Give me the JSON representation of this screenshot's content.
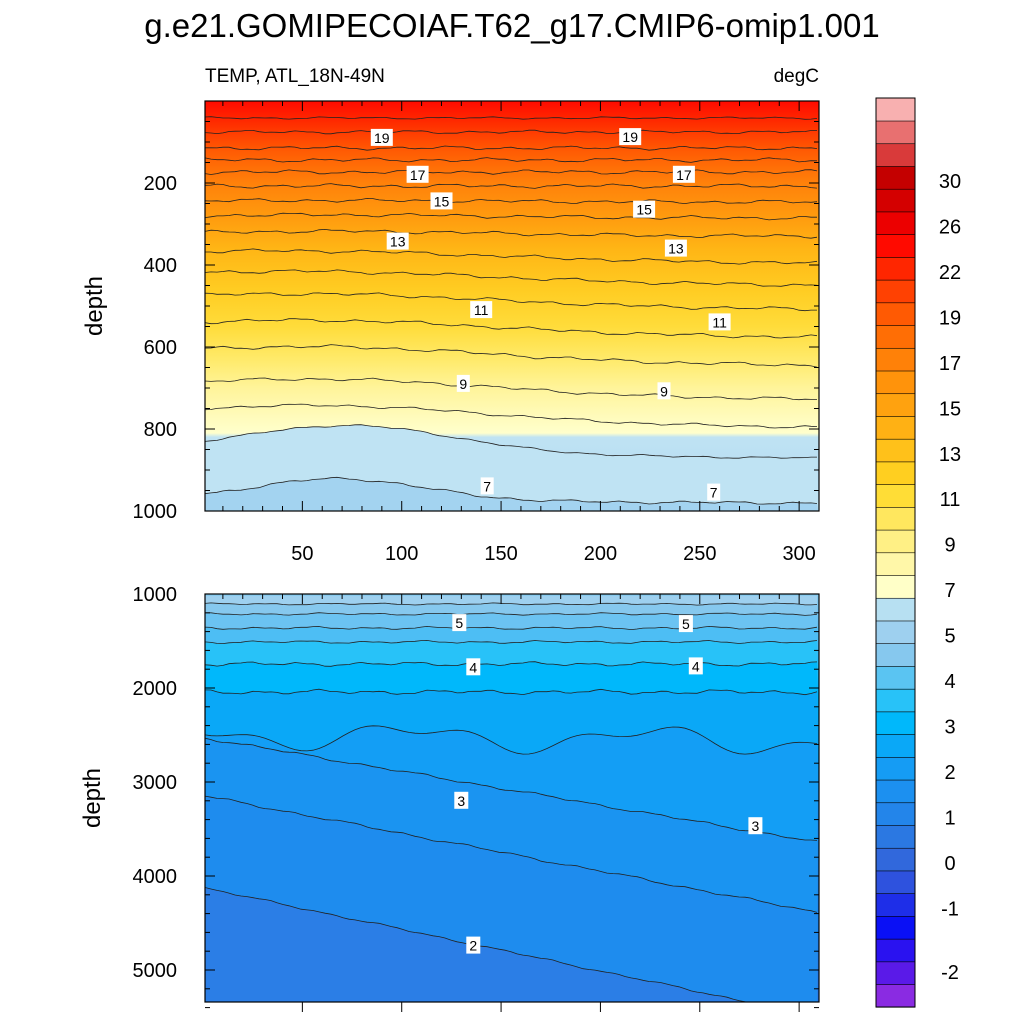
{
  "figure": {
    "title": "g.e21.GOMIPECOIAF.T62_g17.CMIP6-omip1.001",
    "left_subtitle": "TEMP, ATL_18N-49N",
    "right_subtitle": "degC"
  },
  "chart_data": [
    {
      "type": "heatmap",
      "panel": "upper",
      "ylabel": "depth",
      "xlim": [
        1,
        310
      ],
      "ylim": [
        0,
        1000
      ],
      "y_inverted": true,
      "x_ticks": [
        50,
        100,
        150,
        200,
        250,
        300
      ],
      "y_ticks": [
        200,
        400,
        600,
        800,
        1000
      ],
      "contour_labels": [
        {
          "value": "19",
          "x": 90,
          "y": 90
        },
        {
          "value": "19",
          "x": 215,
          "y": 88
        },
        {
          "value": "17",
          "x": 108,
          "y": 180
        },
        {
          "value": "17",
          "x": 242,
          "y": 180
        },
        {
          "value": "15",
          "x": 120,
          "y": 245
        },
        {
          "value": "15",
          "x": 222,
          "y": 265
        },
        {
          "value": "13",
          "x": 98,
          "y": 343
        },
        {
          "value": "13",
          "x": 238,
          "y": 360
        },
        {
          "value": "11",
          "x": 140,
          "y": 510
        },
        {
          "value": "11",
          "x": 260,
          "y": 540
        },
        {
          "value": "9",
          "x": 131,
          "y": 690
        },
        {
          "value": "9",
          "x": 232,
          "y": 708
        },
        {
          "value": "7",
          "x": 143,
          "y": 940
        },
        {
          "value": "7",
          "x": 257,
          "y": 955
        }
      ]
    },
    {
      "type": "heatmap",
      "panel": "lower",
      "ylabel": "depth",
      "xlim": [
        1,
        310
      ],
      "ylim": [
        1000,
        5400
      ],
      "y_inverted": true,
      "y_ticks": [
        1000,
        2000,
        3000,
        4000,
        5000
      ],
      "contour_labels": [
        {
          "value": "5",
          "x": 129,
          "y": 1310
        },
        {
          "value": "5",
          "x": 243,
          "y": 1320
        },
        {
          "value": "4",
          "x": 136,
          "y": 1780
        },
        {
          "value": "4",
          "x": 248,
          "y": 1770
        },
        {
          "value": "3",
          "x": 130,
          "y": 3200
        },
        {
          "value": "3",
          "x": 278,
          "y": 3470
        },
        {
          "value": "2",
          "x": 136,
          "y": 4740
        }
      ]
    }
  ],
  "colorbar": {
    "labels": [
      "-2",
      "-1",
      "0",
      "1",
      "2",
      "3",
      "4",
      "5",
      "7",
      "9",
      "11",
      "13",
      "15",
      "17",
      "19",
      "22",
      "26",
      "30"
    ],
    "colors": [
      "#8a2be2",
      "#5a1ae8",
      "#2a12f0",
      "#0a10f5",
      "#1e2ee8",
      "#2e52de",
      "#3168dc",
      "#2b78e2",
      "#2385ea",
      "#1c90f0",
      "#159cf4",
      "#0aa8f7",
      "#00b8fb",
      "#28c2f8",
      "#5ac4f2",
      "#86c8ee",
      "#9ed0ef",
      "#b7e0f2",
      "#ffffc8",
      "#fff7a8",
      "#fff085",
      "#ffe75e",
      "#ffdd36",
      "#ffcf20",
      "#ffc11a",
      "#ffb114",
      "#ffa20f",
      "#ff930b",
      "#ff8108",
      "#ff6e05",
      "#ff5a03",
      "#ff4102",
      "#ff2600",
      "#ff0a00",
      "#ec0000",
      "#d40000",
      "#c40000",
      "#d93a3a",
      "#e87070",
      "#f8b0b0"
    ]
  }
}
